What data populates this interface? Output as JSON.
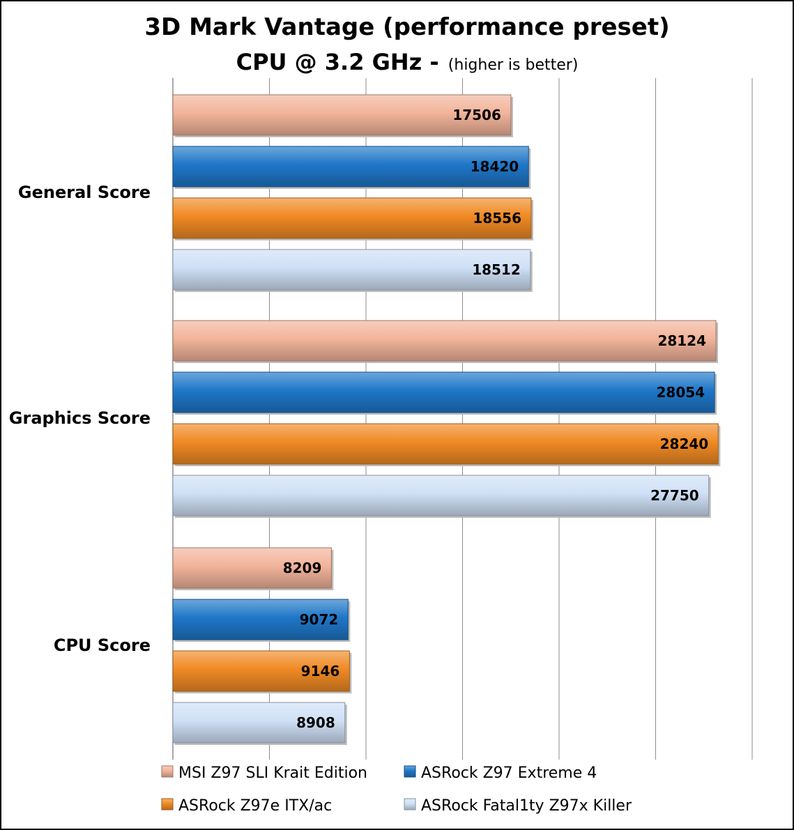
{
  "chart_data": {
    "type": "bar",
    "orientation": "horizontal",
    "title": "3D Mark Vantage (performance preset)",
    "subtitle_main": "CPU @ 3.2 GHz -",
    "subtitle_note": "(higher is better)",
    "categories": [
      "General Score",
      "Graphics Score",
      "CPU Score"
    ],
    "series": [
      {
        "name": "MSI Z97 SLI Krait Edition",
        "color": "#f2b49a",
        "values": [
          17506,
          28124,
          8209
        ]
      },
      {
        "name": "ASRock Z97 Extreme 4",
        "color": "#1f77c8",
        "values": [
          18420,
          28054,
          9072
        ]
      },
      {
        "name": "ASRock Z97e ITX/ac",
        "color": "#f08a24",
        "values": [
          18556,
          28240,
          9146
        ]
      },
      {
        "name": "ASRock Fatal1ty Z97x Killer",
        "color": "#cfe0f6",
        "values": [
          18512,
          27750,
          8908
        ]
      }
    ],
    "xlim": [
      0,
      30000
    ],
    "x_gridline_step": 5000,
    "grid": true,
    "legend_position": "bottom"
  }
}
